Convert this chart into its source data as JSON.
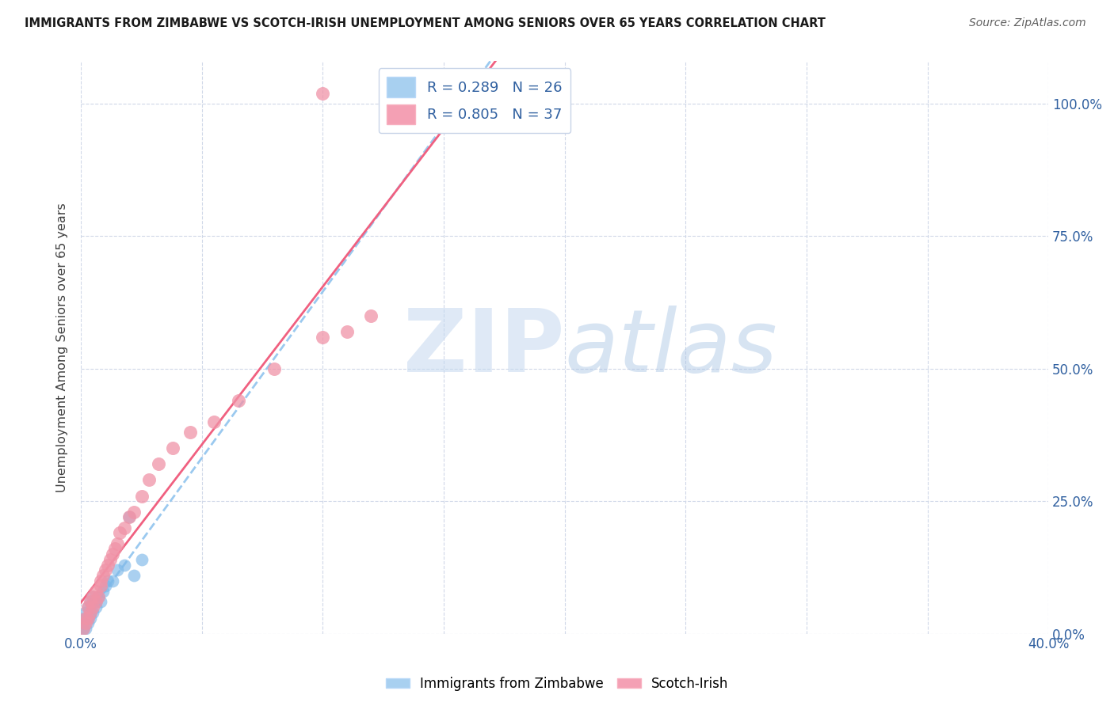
{
  "title": "IMMIGRANTS FROM ZIMBABWE VS SCOTCH-IRISH UNEMPLOYMENT AMONG SENIORS OVER 65 YEARS CORRELATION CHART",
  "source": "Source: ZipAtlas.com",
  "ylabel": "Unemployment Among Seniors over 65 years",
  "right_yticklabels": [
    "0.0%",
    "25.0%",
    "50.0%",
    "75.0%",
    "100.0%"
  ],
  "zimbabwe_color": "#7db8e8",
  "scotch_color": "#f093a7",
  "zimbabwe_line_color": "#90c4ee",
  "scotch_line_color": "#f06080",
  "xlim": [
    0.0,
    0.4
  ],
  "ylim": [
    0.0,
    1.08
  ],
  "zimbabwe_R": 0.289,
  "scotch_R": 0.805,
  "zimbabwe_N": 26,
  "scotch_N": 37,
  "zim_x": [
    0.001,
    0.001,
    0.002,
    0.002,
    0.002,
    0.003,
    0.003,
    0.003,
    0.004,
    0.004,
    0.004,
    0.005,
    0.005,
    0.006,
    0.006,
    0.007,
    0.008,
    0.009,
    0.01,
    0.011,
    0.013,
    0.015,
    0.018,
    0.02,
    0.025,
    0.022
  ],
  "zim_y": [
    0.01,
    0.02,
    0.01,
    0.03,
    0.04,
    0.02,
    0.03,
    0.05,
    0.03,
    0.04,
    0.06,
    0.04,
    0.07,
    0.05,
    0.06,
    0.07,
    0.06,
    0.08,
    0.09,
    0.1,
    0.1,
    0.12,
    0.13,
    0.22,
    0.14,
    0.11
  ],
  "scotch_x": [
    0.001,
    0.002,
    0.002,
    0.003,
    0.003,
    0.004,
    0.004,
    0.005,
    0.005,
    0.006,
    0.006,
    0.007,
    0.008,
    0.008,
    0.009,
    0.01,
    0.011,
    0.012,
    0.013,
    0.014,
    0.015,
    0.016,
    0.018,
    0.02,
    0.022,
    0.025,
    0.028,
    0.032,
    0.038,
    0.045,
    0.055,
    0.065,
    0.08,
    0.1,
    0.11,
    0.12,
    0.1
  ],
  "scotch_y": [
    0.01,
    0.02,
    0.03,
    0.03,
    0.05,
    0.04,
    0.06,
    0.05,
    0.07,
    0.06,
    0.08,
    0.07,
    0.09,
    0.1,
    0.11,
    0.12,
    0.13,
    0.14,
    0.15,
    0.16,
    0.17,
    0.19,
    0.2,
    0.22,
    0.23,
    0.26,
    0.29,
    0.32,
    0.35,
    0.38,
    0.4,
    0.44,
    0.5,
    0.56,
    0.57,
    0.6,
    1.02
  ],
  "zim_trend": [
    0.02,
    0.45
  ],
  "scotch_trend": [
    -0.02,
    0.9
  ]
}
